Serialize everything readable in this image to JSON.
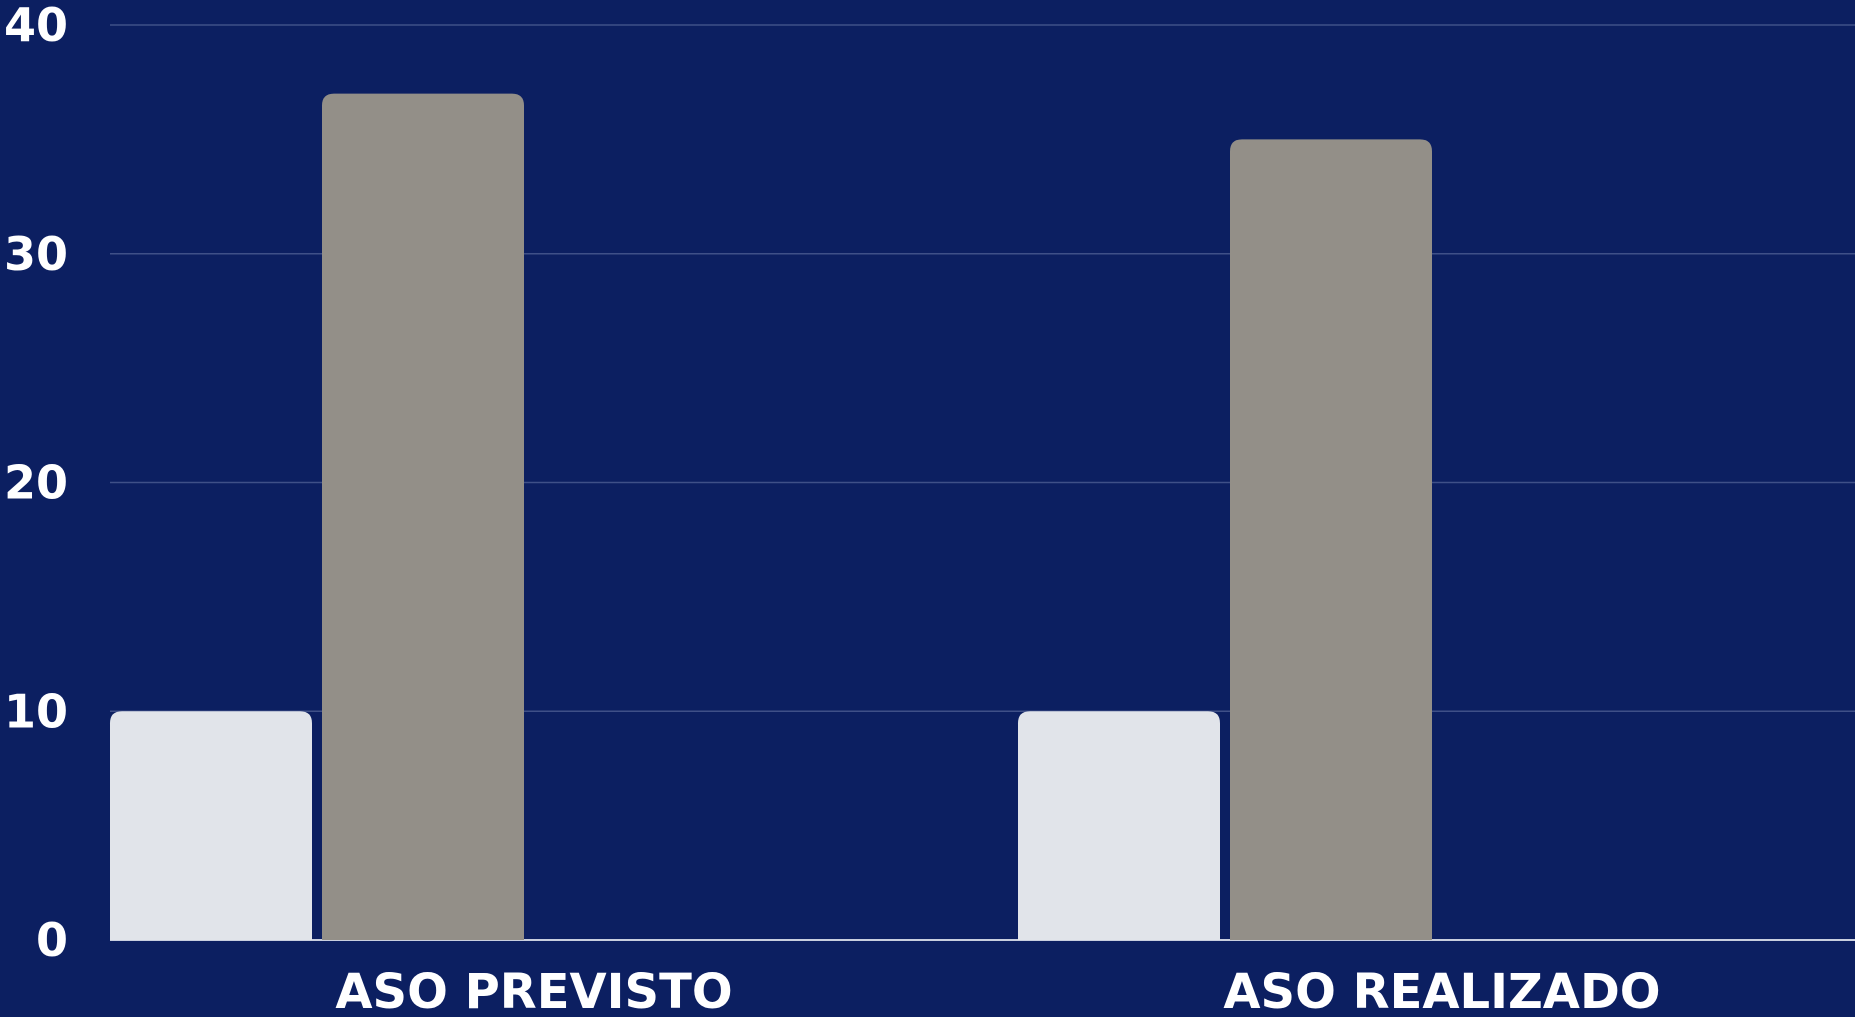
{
  "colors": {
    "background": "#0c1f61",
    "gridline": "#3f5088",
    "axis": "#c9cfdf"
  },
  "chart_data": {
    "type": "bar",
    "categories": [
      "ASO PREVISTO",
      "ASO REALIZADO"
    ],
    "series": [
      {
        "color": "#e1e4ea",
        "values": [
          10,
          10
        ]
      },
      {
        "color": "#938f88",
        "values": [
          37,
          35
        ]
      }
    ],
    "ylim": [
      0,
      40
    ],
    "yticks": [
      0,
      10,
      20,
      30,
      40
    ],
    "grid": true,
    "legend": "none"
  }
}
